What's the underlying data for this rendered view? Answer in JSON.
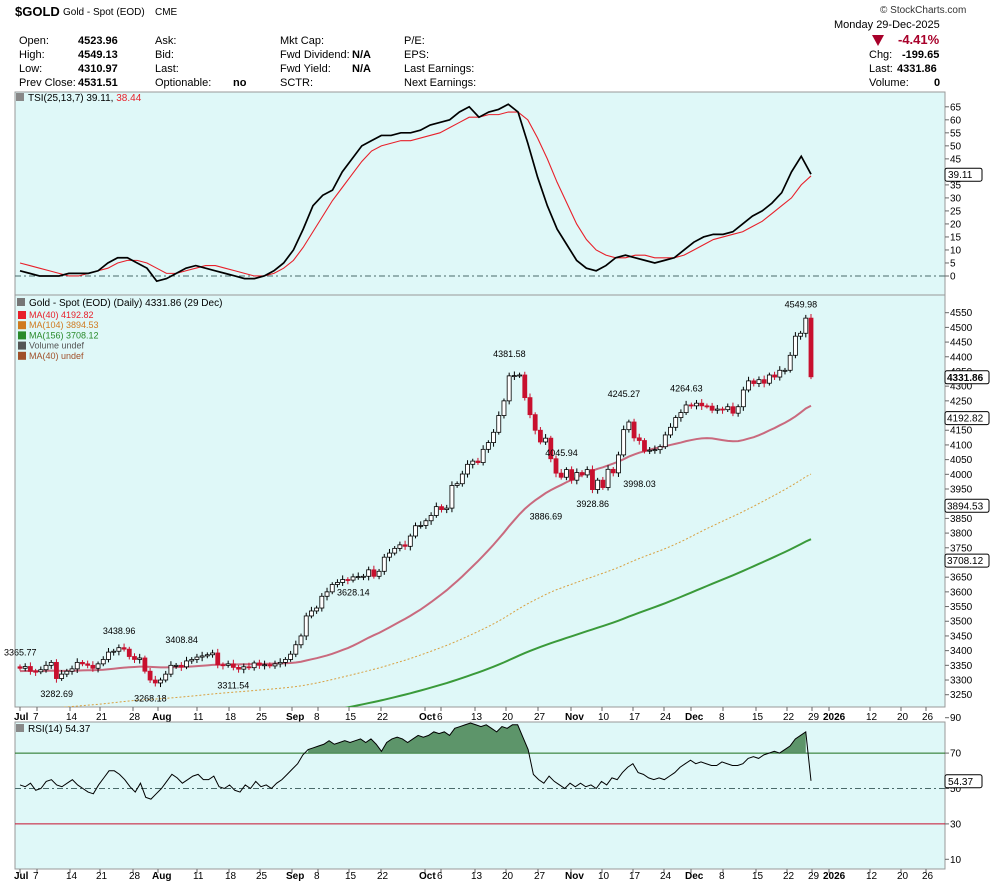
{
  "header": {
    "symbol": "$GOLD",
    "name": "Gold - Spot (EOD)",
    "exchange": "CME",
    "brand": "© StockCharts.com",
    "date": "Monday  29-Dec-2025",
    "pct_change": "-4.41%",
    "chg_label": "Chg:",
    "chg_value": "-199.65",
    "last_label": "Last:",
    "last_value": "4331.86",
    "volume_label": "Volume:",
    "volume_value": "0",
    "col1": [
      {
        "label": "Open:",
        "value": "4523.96"
      },
      {
        "label": "High:",
        "value": "4549.13"
      },
      {
        "label": "Low:",
        "value": "4310.97"
      },
      {
        "label": "Prev Close:",
        "value": "4531.51"
      }
    ],
    "col2": [
      {
        "label": "Ask:",
        "value": ""
      },
      {
        "label": "Bid:",
        "value": ""
      },
      {
        "label": "Last:",
        "value": ""
      },
      {
        "label": "Optionable:",
        "value": "no"
      }
    ],
    "col3": [
      {
        "label": "Mkt Cap:",
        "value": ""
      },
      {
        "label": "Fwd Dividend:",
        "value": "N/A"
      },
      {
        "label": "Fwd Yield:",
        "value": "N/A"
      },
      {
        "label": "SCTR:",
        "value": ""
      }
    ],
    "col4": [
      {
        "label": "P/E:",
        "value": ""
      },
      {
        "label": "EPS:",
        "value": ""
      },
      {
        "label": "Last Earnings:",
        "value": ""
      },
      {
        "label": "Next Earnings:",
        "value": ""
      }
    ]
  },
  "chart_data": [
    {
      "type": "line",
      "title": "TSI(25,13,7)",
      "legend_value": "39.11",
      "signal_value": "38.44",
      "ylim": [
        -5,
        68
      ],
      "yticks": [
        0,
        5,
        10,
        15,
        20,
        25,
        30,
        35,
        40,
        45,
        50,
        55,
        60,
        65
      ],
      "last_label": "39.11",
      "colors": {
        "tsi": "#000000",
        "signal": "#e8202a",
        "zero": "#4a6a6a"
      },
      "tsi": [
        2,
        1,
        0,
        0,
        0,
        1,
        1,
        1,
        2,
        5,
        7,
        7,
        5,
        3,
        -2,
        -1,
        1,
        3,
        4,
        3,
        2,
        1,
        0,
        -1,
        -1,
        0,
        2,
        5,
        10,
        18,
        27,
        31,
        33,
        40,
        45,
        50,
        52,
        54,
        54,
        55,
        55,
        56,
        58,
        59,
        60,
        63,
        65,
        61,
        63,
        64,
        66,
        63,
        51,
        38,
        27,
        18,
        12,
        6,
        3,
        2,
        4,
        7,
        8,
        7,
        6,
        5,
        6,
        7,
        10,
        13,
        15,
        16,
        16,
        17,
        20,
        23,
        25,
        28,
        32,
        40,
        46,
        39.11
      ],
      "signal": [
        5,
        4,
        3,
        2,
        1,
        0,
        0,
        1,
        2,
        3,
        5,
        6,
        6,
        5,
        3,
        1,
        1,
        2,
        3,
        4,
        4,
        3,
        2,
        1,
        0,
        0,
        1,
        3,
        6,
        11,
        17,
        23,
        29,
        34,
        39,
        44,
        48,
        50,
        51,
        52,
        52,
        53,
        54,
        55,
        57,
        59,
        61,
        61,
        62,
        62,
        63,
        63,
        60,
        53,
        45,
        36,
        28,
        20,
        14,
        10,
        8,
        7,
        7,
        8,
        8,
        7,
        7,
        7,
        8,
        10,
        12,
        14,
        15,
        16,
        17,
        19,
        21,
        24,
        27,
        30,
        35,
        38.44
      ]
    },
    {
      "type": "bar",
      "title": "Gold - Spot (EOD) (Daily) 4331.86 (29 Dec)",
      "legend": [
        {
          "label": "MA(40) 4192.82",
          "color": "#e8202a"
        },
        {
          "label": "MA(104) 3894.53",
          "color": "#d07a20"
        },
        {
          "label": "MA(156) 3708.12",
          "color": "#2a8a2a"
        },
        {
          "label": "Volume undef",
          "color": "#555555"
        },
        {
          "label": "MA(40) undef",
          "color": "#a0502a"
        }
      ],
      "ylim": [
        3215,
        4600
      ],
      "yticks": [
        3250,
        3300,
        3350,
        3400,
        3450,
        3500,
        3550,
        3600,
        3650,
        3700,
        3750,
        3800,
        3850,
        3900,
        3950,
        4000,
        4050,
        4100,
        4150,
        4200,
        4250,
        4300,
        4350,
        4400,
        4450,
        4500,
        4550
      ],
      "price_tags": [
        {
          "label": "4331.86",
          "value": 4331.86,
          "bold": true
        },
        {
          "label": "4192.82",
          "value": 4192.82,
          "bold": false
        },
        {
          "label": "3894.53",
          "value": 3894.53,
          "bold": false
        },
        {
          "label": "3708.12",
          "value": 3708.12,
          "bold": false
        }
      ],
      "annotations": [
        {
          "text": "3365.77",
          "value": 3365.77,
          "index": 0
        },
        {
          "text": "3282.69",
          "value": 3282.69,
          "index": 7
        },
        {
          "text": "3438.96",
          "value": 3438.96,
          "index": 19
        },
        {
          "text": "3268.18",
          "value": 3268.18,
          "index": 25
        },
        {
          "text": "3408.84",
          "value": 3408.84,
          "index": 31
        },
        {
          "text": "3311.54",
          "value": 3311.54,
          "index": 41
        },
        {
          "text": "3628.14",
          "value": 3628.14,
          "index": 64
        },
        {
          "text": "4381.58",
          "value": 4381.58,
          "index": 94
        },
        {
          "text": "3886.69",
          "value": 3886.69,
          "index": 101
        },
        {
          "text": "4045.94",
          "value": 4045.94,
          "index": 104
        },
        {
          "text": "3928.86",
          "value": 3928.86,
          "index": 110
        },
        {
          "text": "4245.27",
          "value": 4245.27,
          "index": 116
        },
        {
          "text": "3998.03",
          "value": 3998.03,
          "index": 119
        },
        {
          "text": "4264.63",
          "value": 4264.63,
          "index": 128
        },
        {
          "text": "4549.98",
          "value": 4549.98,
          "index": 150
        }
      ],
      "close": [
        3340,
        3346,
        3330,
        3328,
        3335,
        3350,
        3360,
        3305,
        3320,
        3330,
        3338,
        3360,
        3355,
        3350,
        3340,
        3355,
        3370,
        3395,
        3398,
        3410,
        3405,
        3380,
        3370,
        3375,
        3330,
        3300,
        3290,
        3300,
        3320,
        3350,
        3350,
        3345,
        3365,
        3370,
        3378,
        3382,
        3386,
        3392,
        3352,
        3350,
        3355,
        3343,
        3337,
        3345,
        3342,
        3358,
        3350,
        3352,
        3348,
        3355,
        3360,
        3370,
        3388,
        3420,
        3450,
        3518,
        3535,
        3545,
        3585,
        3600,
        3625,
        3632,
        3642,
        3640,
        3651,
        3652,
        3653,
        3675,
        3653,
        3670,
        3718,
        3732,
        3748,
        3760,
        3755,
        3790,
        3825,
        3826,
        3842,
        3860,
        3890,
        3880,
        3885,
        3962,
        3968,
        4001,
        4034,
        4045,
        4040,
        4085,
        4108,
        4143,
        4200,
        4250,
        4335,
        4336,
        4338,
        4261,
        4203,
        4150,
        4110,
        4123,
        4053,
        4004,
        3990,
        4016,
        3980,
        4006,
        3998,
        4016,
        3948,
        3980,
        3955,
        4017,
        4005,
        4066,
        4152,
        4178,
        4124,
        4115,
        4079,
        4082,
        4084,
        4094,
        4134,
        4160,
        4193,
        4210,
        4236,
        4233,
        4242,
        4233,
        4232,
        4218,
        4222,
        4220,
        4230,
        4208,
        4230,
        4287,
        4318,
        4309,
        4322,
        4310,
        4338,
        4331,
        4354,
        4354,
        4405,
        4470,
        4480,
        4531.51,
        4331.86
      ],
      "dates": [
        "Jul",
        "7",
        "14",
        "21",
        "28",
        "Aug",
        "11",
        "18",
        "25",
        "Sep",
        "8",
        "15",
        "22",
        "Oct",
        "6",
        "13",
        "20",
        "27",
        "Nov",
        "10",
        "17",
        "24",
        "Dec",
        "8",
        "15",
        "22",
        "29",
        "2026",
        "12",
        "20",
        "26"
      ],
      "colors": {
        "up": "#ffffff",
        "down": "#c8102e",
        "ma40": "#c96a7e",
        "ma104": "#d8a040",
        "ma156": "#3a9a3a"
      }
    },
    {
      "type": "line",
      "title": "RSI(14)",
      "legend_value": "54.37",
      "last_label": "54.37",
      "ylim": [
        0,
        100
      ],
      "yticks": [
        10,
        30,
        50,
        70,
        90
      ],
      "colors": {
        "line": "#000000",
        "fill": "#4f8a5a",
        "upper": "#1a6e1a",
        "lower": "#c8102e",
        "mid": "#4a6a6a"
      },
      "rsi": [
        52,
        51,
        53,
        49,
        50,
        54,
        55,
        52,
        51,
        53,
        55,
        52,
        50,
        48,
        47,
        52,
        56,
        60,
        60,
        58,
        55,
        51,
        48,
        53,
        45,
        44,
        47,
        50,
        54,
        58,
        56,
        53,
        55,
        57,
        58,
        55,
        55,
        57,
        51,
        50,
        52,
        49,
        48,
        52,
        50,
        54,
        51,
        52,
        50,
        53,
        55,
        58,
        61,
        64,
        69,
        72,
        73,
        74,
        75,
        77,
        75,
        76,
        77,
        76,
        77,
        78,
        76,
        78,
        75,
        71,
        76,
        78,
        79,
        78,
        76,
        78,
        80,
        79,
        80,
        82,
        81,
        82,
        80,
        84,
        85,
        86,
        87,
        86,
        85,
        86,
        84,
        82,
        85,
        84,
        86,
        86,
        79,
        72,
        58,
        55,
        53,
        57,
        54,
        52,
        50,
        53,
        51,
        53,
        51,
        52,
        50,
        54,
        52,
        56,
        55,
        59,
        62,
        64,
        59,
        58,
        56,
        55,
        56,
        55,
        57,
        59,
        62,
        64,
        66,
        64,
        65,
        64,
        63,
        63,
        65,
        64,
        63,
        63,
        64,
        67,
        68,
        67,
        69,
        70,
        71,
        70,
        72,
        74,
        78,
        80,
        82,
        54.37
      ]
    }
  ]
}
